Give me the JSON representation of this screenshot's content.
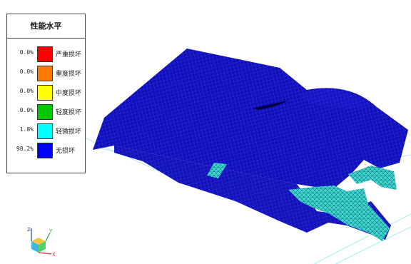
{
  "legend": {
    "title": "性能水平",
    "items": [
      {
        "percent": "0.0%",
        "label": "严重损坏",
        "color": "#ff0000"
      },
      {
        "percent": "0.0%",
        "label": "重度损坏",
        "color": "#ff7a00"
      },
      {
        "percent": "0.0%",
        "label": "中度损坏",
        "color": "#ffff00"
      },
      {
        "percent": "0.0%",
        "label": "轻度损坏",
        "color": "#00c800"
      },
      {
        "percent": "1.8%",
        "label": "轻微损坏",
        "color": "#00ffff"
      },
      {
        "percent": "98.2%",
        "label": "无损坏",
        "color": "#0000ff"
      }
    ]
  },
  "axes": {
    "x": "X",
    "y": "Y",
    "z": "Z"
  },
  "colors": {
    "surface": "#1010b4",
    "mesh": "#4848ff",
    "damage": "#40d8d0",
    "grid_line": "#a8e8f0"
  }
}
